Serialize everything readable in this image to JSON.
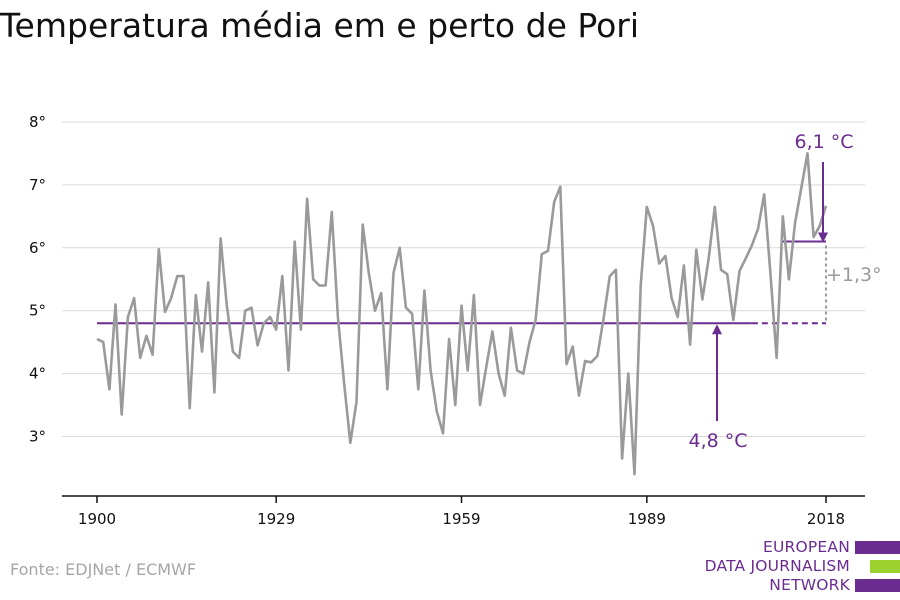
{
  "title": "Temperatura média em e perto de Pori",
  "source": "Fonte: EDJNet / ECMWF",
  "logo": {
    "lines": [
      "EUROPEAN",
      "DATA JOURNALISM",
      "NETWORK"
    ],
    "colors": [
      "#6b2c91",
      "#9bd22d",
      "#6b2c91"
    ]
  },
  "colors": {
    "series": "#9a9a9a",
    "accent": "#6b2c91",
    "delta": "#9a9a9a",
    "grid": "#d9d9d9",
    "axis": "#111111"
  },
  "chart_data": {
    "type": "line",
    "title": "Temperatura média em e perto de Pori",
    "xlabel": "",
    "ylabel": "",
    "xlim": [
      1900,
      2018
    ],
    "ylim": [
      2.1,
      8.0
    ],
    "xticks": [
      1900,
      1929,
      1959,
      1989,
      2018
    ],
    "xtick_labels": [
      "1900",
      "1929",
      "1959",
      "1989",
      "2018"
    ],
    "yticks": [
      3,
      4,
      5,
      6,
      7,
      8
    ],
    "ytick_labels": [
      "3°",
      "4°",
      "5°",
      "6°",
      "7°",
      "8°"
    ],
    "grid": true,
    "series": [
      {
        "x": [
          1900,
          1901,
          1902,
          1903,
          1904,
          1905,
          1906,
          1907,
          1908,
          1909,
          1910,
          1911,
          1912,
          1913,
          1914,
          1915,
          1916,
          1917,
          1918,
          1919,
          1920,
          1921,
          1922,
          1923,
          1924,
          1925,
          1926,
          1927,
          1928,
          1929,
          1930,
          1931,
          1932,
          1933,
          1934,
          1935,
          1936,
          1937,
          1938,
          1939,
          1940,
          1941,
          1942,
          1943,
          1944,
          1945,
          1946,
          1947,
          1948,
          1949,
          1950,
          1951,
          1952,
          1953,
          1954,
          1955,
          1956,
          1957,
          1958,
          1959,
          1960,
          1961,
          1962,
          1963,
          1964,
          1965,
          1966,
          1967,
          1968,
          1969,
          1970,
          1971,
          1972,
          1973,
          1974,
          1975,
          1976,
          1977,
          1978,
          1979,
          1980,
          1981,
          1982,
          1983,
          1984,
          1985,
          1986,
          1987,
          1988,
          1989,
          1990,
          1991,
          1992,
          1993,
          1994,
          1995,
          1996,
          1997,
          1998,
          1999,
          2000,
          2001,
          2002,
          2003,
          2004,
          2005,
          2006,
          2007,
          2008,
          2009,
          2010,
          2011,
          2012,
          2013,
          2014,
          2015,
          2016,
          2017,
          2018
        ],
        "values": [
          4.55,
          4.5,
          3.75,
          5.1,
          3.35,
          4.9,
          5.2,
          4.25,
          4.6,
          4.3,
          5.98,
          4.98,
          5.2,
          5.55,
          5.55,
          3.45,
          5.25,
          4.35,
          5.45,
          3.7,
          6.15,
          5.1,
          4.35,
          4.25,
          5.0,
          5.05,
          4.45,
          4.8,
          4.9,
          4.7,
          5.55,
          4.05,
          6.1,
          4.7,
          6.78,
          5.5,
          5.4,
          5.4,
          6.57,
          4.9,
          3.85,
          2.9,
          3.55,
          6.37,
          5.6,
          5.0,
          5.28,
          3.75,
          5.6,
          6.0,
          5.05,
          4.95,
          3.75,
          5.32,
          4.05,
          3.4,
          3.05,
          4.55,
          3.5,
          5.08,
          4.05,
          5.25,
          3.5,
          4.1,
          4.67,
          4.0,
          3.65,
          4.73,
          4.05,
          4.0,
          4.5,
          4.85,
          5.9,
          5.95,
          6.73,
          6.97,
          4.15,
          4.43,
          3.65,
          4.2,
          4.18,
          4.28,
          4.88,
          5.55,
          5.65,
          2.65,
          4.0,
          2.4,
          5.4,
          6.65,
          6.35,
          5.75,
          5.87,
          5.2,
          4.9,
          5.72,
          4.46,
          5.97,
          5.18,
          5.82,
          6.65,
          5.65,
          5.58,
          4.85,
          5.63,
          5.83,
          6.04,
          6.3,
          6.85,
          5.6,
          4.25,
          6.5,
          5.5,
          6.4,
          6.95,
          7.5,
          6.17,
          6.35,
          6.67
        ]
      }
    ],
    "baseline": {
      "value": 4.8,
      "label": "4,8 °C",
      "x_from": 1900,
      "x_to": 2018
    },
    "recent": {
      "value": 6.1,
      "label": "6,1 °C",
      "x_from": 2011,
      "x_to": 2018
    },
    "delta_label": "+1,3°"
  }
}
